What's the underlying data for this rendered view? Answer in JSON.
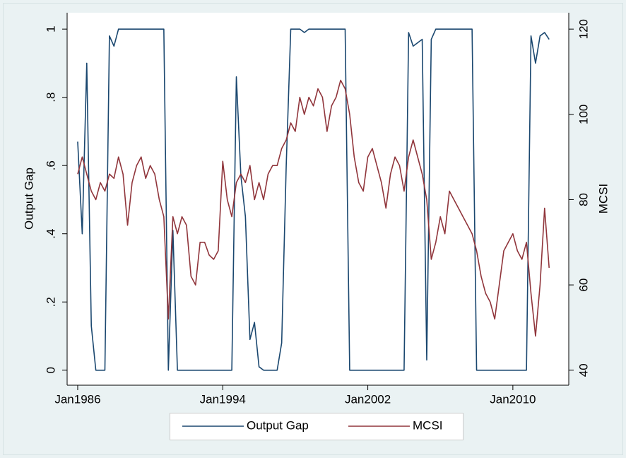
{
  "chart_data": {
    "type": "line",
    "x": [
      "1986-01",
      "1986-04",
      "1986-07",
      "1986-10",
      "1987-01",
      "1987-04",
      "1987-07",
      "1987-10",
      "1988-01",
      "1988-04",
      "1988-07",
      "1988-10",
      "1989-01",
      "1989-04",
      "1989-07",
      "1989-10",
      "1990-01",
      "1990-04",
      "1990-07",
      "1990-10",
      "1991-01",
      "1991-04",
      "1991-07",
      "1991-10",
      "1992-01",
      "1992-04",
      "1992-07",
      "1992-10",
      "1993-01",
      "1993-04",
      "1993-07",
      "1993-10",
      "1994-01",
      "1994-04",
      "1994-07",
      "1994-10",
      "1995-01",
      "1995-04",
      "1995-07",
      "1995-10",
      "1996-01",
      "1996-04",
      "1996-07",
      "1996-10",
      "1997-01",
      "1997-04",
      "1997-07",
      "1997-10",
      "1998-01",
      "1998-04",
      "1998-07",
      "1998-10",
      "1999-01",
      "1999-04",
      "1999-07",
      "1999-10",
      "2000-01",
      "2000-04",
      "2000-07",
      "2000-10",
      "2001-01",
      "2001-04",
      "2001-07",
      "2001-10",
      "2002-01",
      "2002-04",
      "2002-07",
      "2002-10",
      "2003-01",
      "2003-04",
      "2003-07",
      "2003-10",
      "2004-01",
      "2004-04",
      "2004-07",
      "2004-10",
      "2005-01",
      "2005-04",
      "2005-07",
      "2005-10",
      "2006-01",
      "2006-04",
      "2006-07",
      "2006-10",
      "2007-01",
      "2007-04",
      "2007-07",
      "2007-10",
      "2008-01",
      "2008-04",
      "2008-07",
      "2008-10",
      "2009-01",
      "2009-04",
      "2009-07",
      "2009-10",
      "2010-01",
      "2010-04",
      "2010-07",
      "2010-10",
      "2011-01",
      "2011-04",
      "2011-07",
      "2011-10",
      "2012-01"
    ],
    "xlim": [
      "1985-06",
      "2013-02"
    ],
    "xticks": [
      {
        "value": "1986-01",
        "label": "Jan1986"
      },
      {
        "value": "1994-01",
        "label": "Jan1994"
      },
      {
        "value": "2002-01",
        "label": "Jan2002"
      },
      {
        "value": "2010-01",
        "label": "Jan2010"
      }
    ],
    "y_label": "Output Gap",
    "y2_label": "MCSI",
    "ylim": [
      -0.044,
      1.048
    ],
    "yticks": [
      0,
      {
        "value": 0.2,
        "label": ".2"
      },
      {
        "value": 0.4,
        "label": ".4"
      },
      {
        "value": 0.6,
        "label": ".6"
      },
      {
        "value": 0.8,
        "label": ".8"
      },
      1
    ],
    "y2lim": [
      36.48,
      123.84
    ],
    "y2ticks": [
      40,
      60,
      80,
      100,
      120
    ],
    "legend": "bottom",
    "series": [
      {
        "name": "Output Gap",
        "color": "#1a476f",
        "values": [
          0.67,
          0.4,
          0.9,
          0.13,
          0,
          0,
          0,
          0.98,
          0.95,
          1,
          1,
          1,
          1,
          1,
          1,
          1,
          1,
          1,
          1,
          1,
          0,
          0.41,
          0,
          0,
          0,
          0,
          0,
          0,
          0,
          0,
          0,
          0,
          0,
          0,
          0,
          0.86,
          0.57,
          0.45,
          0.09,
          0.14,
          0.01,
          0,
          0,
          0,
          0,
          0.08,
          0.6,
          1,
          1,
          1,
          0.99,
          1,
          1,
          1,
          1,
          1,
          1,
          1,
          1,
          1,
          0,
          0,
          0,
          0,
          0,
          0,
          0,
          0,
          0,
          0,
          0,
          0,
          0,
          0.99,
          0.95,
          0.96,
          0.97,
          0.03,
          0.97,
          1,
          1,
          1,
          1,
          1,
          1,
          1,
          1,
          1,
          0,
          0,
          0,
          0,
          0,
          0,
          0,
          0,
          0,
          0,
          0,
          0,
          0.98,
          0.9,
          0.98,
          0.99,
          0.97
        ]
      },
      {
        "name": "MCSI",
        "color": "#90353b",
        "axis": "y2",
        "values": [
          86,
          90,
          86,
          82,
          80,
          84,
          82,
          86,
          85,
          90,
          86,
          74,
          84,
          88,
          90,
          85,
          88,
          86,
          80,
          76,
          52,
          76,
          72,
          76,
          74,
          62,
          60,
          70,
          70,
          67,
          66,
          68,
          89,
          80,
          76,
          84,
          86,
          84,
          88,
          80,
          84,
          80,
          86,
          88,
          88,
          92,
          94,
          98,
          96,
          104,
          100,
          104,
          102,
          106,
          104,
          96,
          102,
          104,
          108,
          106,
          100,
          90,
          84,
          82,
          90,
          92,
          88,
          84,
          78,
          86,
          90,
          88,
          82,
          90,
          94,
          90,
          86,
          80,
          66,
          70,
          76,
          72,
          82,
          80,
          78,
          76,
          74,
          72,
          68,
          62,
          58,
          56,
          52,
          60,
          68,
          70,
          72,
          68,
          66,
          70,
          58,
          48,
          60,
          78,
          64
        ]
      }
    ]
  }
}
